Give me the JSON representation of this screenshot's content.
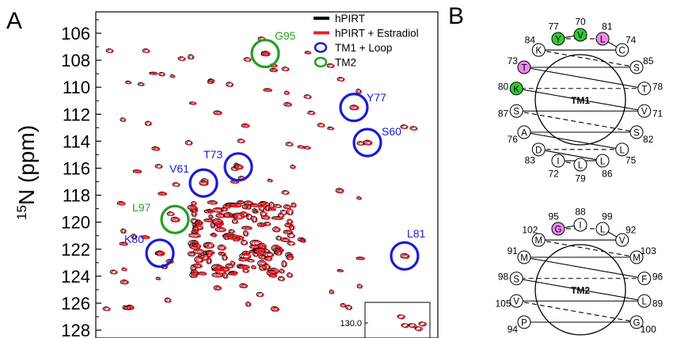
{
  "panel_a": {
    "label": "A",
    "ylabel_sup": "15",
    "ylabel_main": "N (ppm)"
  },
  "panel_b": {
    "label": "B"
  },
  "chart_data": [
    {
      "type": "scatter",
      "title": "",
      "ylabel": "15N (ppm)",
      "xlabel": "",
      "ylim": [
        129,
        104.7
      ],
      "y_ticks": [
        106,
        108,
        110,
        112,
        114,
        116,
        118,
        120,
        122,
        124,
        126,
        128
      ],
      "legend": {
        "placement": "top-right",
        "entries": [
          {
            "label": "hPIRT",
            "color": "#000000",
            "marker": "line"
          },
          {
            "label": "hPIRT + Estradiol",
            "color": "#e8202a",
            "marker": "line"
          },
          {
            "label": "TM1 + Loop",
            "color": "#1a1ad6",
            "marker": "circle"
          },
          {
            "label": "TM2",
            "color": "#22a022",
            "marker": "circle"
          }
        ]
      },
      "annotations": [
        {
          "residue": "G95",
          "group": "TM2",
          "y": 107.5
        },
        {
          "residue": "Y77",
          "group": "TM1 + Loop",
          "y": 111.5
        },
        {
          "residue": "S60",
          "group": "TM1 + Loop",
          "y": 114.1
        },
        {
          "residue": "T73",
          "group": "TM1 + Loop",
          "y": 115.9
        },
        {
          "residue": "V61",
          "group": "TM1 + Loop",
          "y": 117.1
        },
        {
          "residue": "L97",
          "group": "TM2",
          "y": 119.8
        },
        {
          "residue": "K80",
          "group": "TM1 + Loop",
          "y": 122.3
        },
        {
          "residue": "L81",
          "group": "TM1 + Loop",
          "y": 122.5
        }
      ],
      "inset": {
        "tick_label": "130.0"
      }
    },
    {
      "type": "helical-wheel",
      "name": "TM1",
      "residues": [
        {
          "num": "70",
          "aa": "V",
          "color": "#33cc33"
        },
        {
          "num": "77",
          "aa": "Y",
          "color": "#33cc33"
        },
        {
          "num": "81",
          "aa": "L",
          "color": "#ee88ee"
        },
        {
          "num": "74",
          "aa": "C",
          "color": "#ffffff"
        },
        {
          "num": "84",
          "aa": "K",
          "color": "#ffffff"
        },
        {
          "num": "85",
          "aa": "S",
          "color": "#ffffff"
        },
        {
          "num": "73",
          "aa": "T",
          "color": "#ee88ee"
        },
        {
          "num": "78",
          "aa": "T",
          "color": "#ffffff"
        },
        {
          "num": "80",
          "aa": "K",
          "color": "#33cc33"
        },
        {
          "num": "71",
          "aa": "V",
          "color": "#ffffff"
        },
        {
          "num": "87",
          "aa": "S",
          "color": "#ffffff"
        },
        {
          "num": "82",
          "aa": "S",
          "color": "#ffffff"
        },
        {
          "num": "76",
          "aa": "A",
          "color": "#ffffff"
        },
        {
          "num": "75",
          "aa": "L",
          "color": "#ffffff"
        },
        {
          "num": "83",
          "aa": "D",
          "color": "#ffffff"
        },
        {
          "num": "86",
          "aa": "L",
          "color": "#ffffff"
        },
        {
          "num": "72",
          "aa": "I",
          "color": "#ffffff"
        },
        {
          "num": "79",
          "aa": "L",
          "color": "#ffffff"
        }
      ]
    },
    {
      "type": "helical-wheel",
      "name": "TM2",
      "residues": [
        {
          "num": "88",
          "aa": "I",
          "color": "#ffffff"
        },
        {
          "num": "95",
          "aa": "G",
          "color": "#ee88ee"
        },
        {
          "num": "99",
          "aa": "L",
          "color": "#ffffff"
        },
        {
          "num": "92",
          "aa": "V",
          "color": "#ffffff"
        },
        {
          "num": "102",
          "aa": "M",
          "color": "#ffffff"
        },
        {
          "num": "103",
          "aa": "M",
          "color": "#ffffff"
        },
        {
          "num": "91",
          "aa": "M",
          "color": "#ffffff"
        },
        {
          "num": "96",
          "aa": "F",
          "color": "#ffffff"
        },
        {
          "num": "98",
          "aa": "S",
          "color": "#ffffff"
        },
        {
          "num": "89",
          "aa": "L",
          "color": "#ffffff"
        },
        {
          "num": "105",
          "aa": "V",
          "color": "#ffffff"
        },
        {
          "num": "100",
          "aa": "G",
          "color": "#ffffff"
        },
        {
          "num": "94",
          "aa": "P",
          "color": "#ffffff"
        }
      ]
    }
  ]
}
